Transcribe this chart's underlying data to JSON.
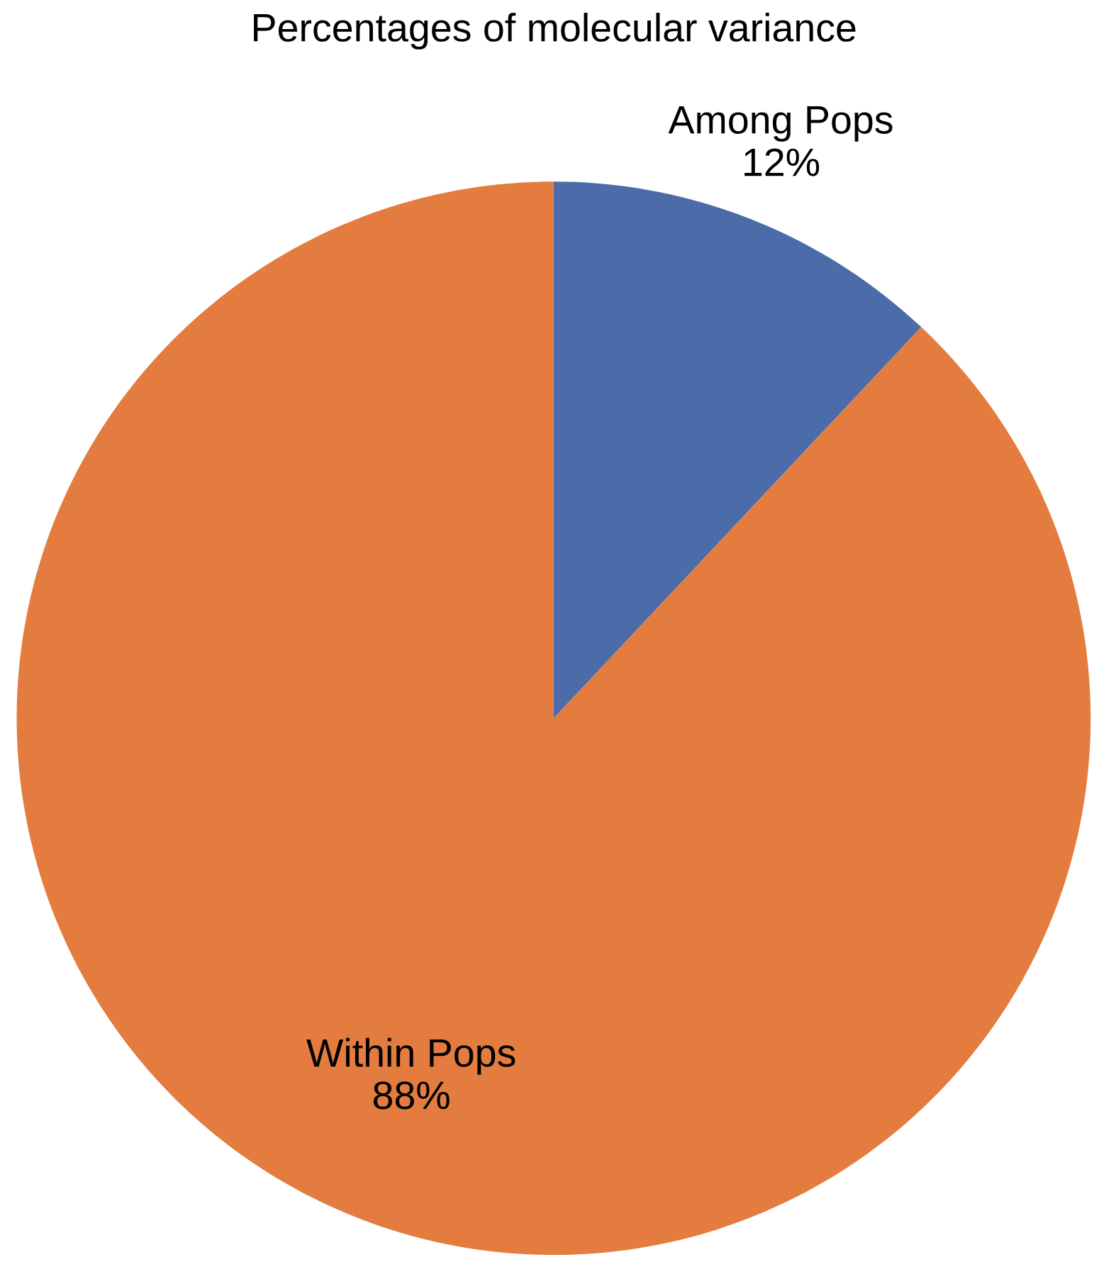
{
  "chart_data": {
    "type": "pie",
    "title": "Percentages of molecular variance",
    "categories": [
      "Among Pops",
      "Within Pops"
    ],
    "values": [
      12,
      88
    ],
    "colors": [
      "#4b6ca9",
      "#e47c3f"
    ],
    "value_labels": [
      "12%",
      "88%"
    ]
  }
}
